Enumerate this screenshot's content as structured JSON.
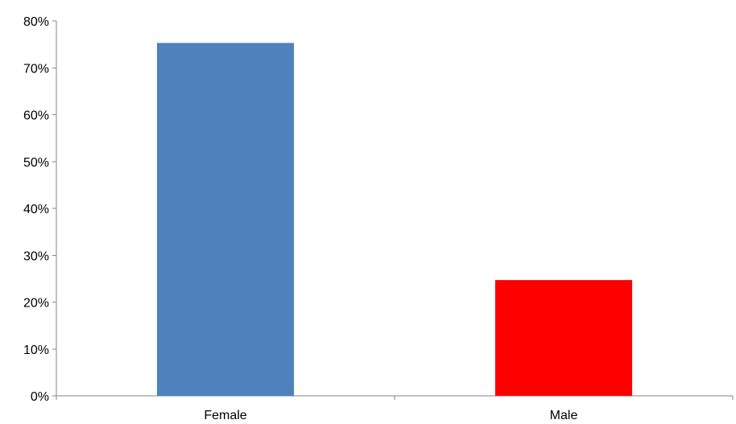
{
  "chart_data": {
    "type": "bar",
    "categories": [
      "Female",
      "Male"
    ],
    "values": [
      75.3,
      24.7
    ],
    "colors": [
      "#4f81bd",
      "#ff0000"
    ],
    "title": "",
    "xlabel": "",
    "ylabel": "",
    "ylim": [
      0,
      80
    ],
    "y_ticks": [
      0,
      10,
      20,
      30,
      40,
      50,
      60,
      70,
      80
    ],
    "y_tick_format": "percent",
    "grid": false,
    "legend": "none"
  }
}
